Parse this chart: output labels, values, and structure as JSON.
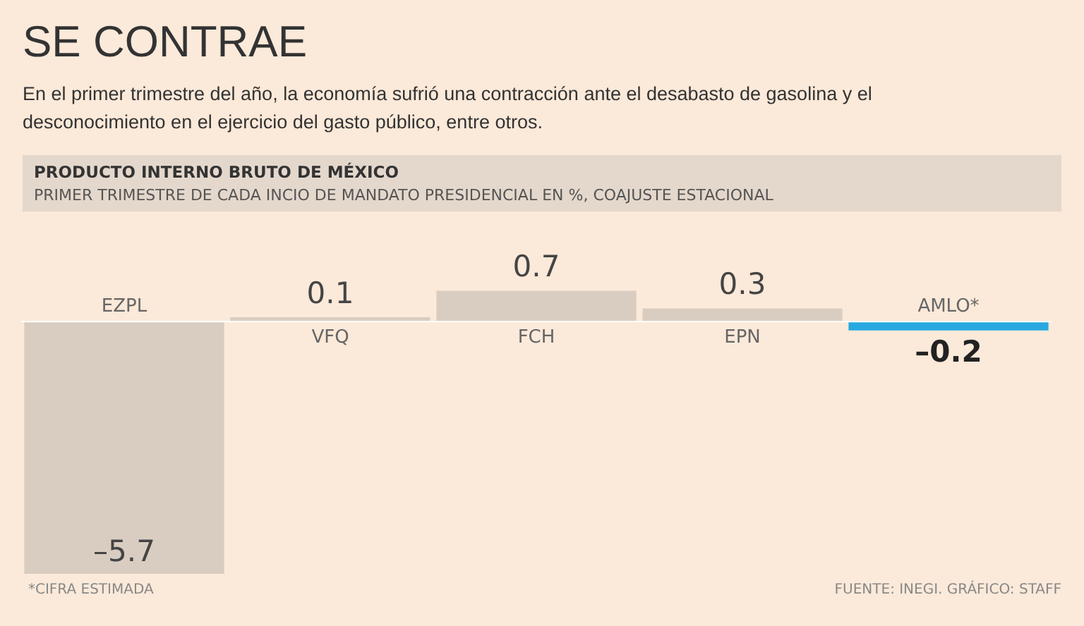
{
  "chart_data": {
    "type": "bar",
    "title": "SE CONTRAE",
    "subtitle": "En el primer trimestre del año, la economía sufrió una contracción ante el desabasto de gasolina y el desconocimiento en el ejercicio del gasto público, entre otros.",
    "annotations": [
      "PRODUCTO INTERNO BRUTO DE MÉXICO",
      "PRIMER TRIMESTRE DE CADA INCIO DE MANDATO PRESIDENCIAL EN %, COAJUSTE ESTACIONAL",
      "*CIFRA ESTIMADA",
      "FUENTE: INEGI. GRÁFICO: STAFF"
    ],
    "categories": [
      "EZPL",
      "VFQ",
      "FCH",
      "EPN",
      "AMLO*"
    ],
    "values": [
      -5.7,
      0.1,
      0.7,
      0.3,
      -0.2
    ],
    "colors": [
      "#d9cdc1",
      "#d9cdc1",
      "#d9cdc1",
      "#d9cdc1",
      "#29a8e0"
    ],
    "value_labels": [
      "–5.7",
      "0.1",
      "0.7",
      "0.3",
      "–0.2"
    ],
    "legend": false
  }
}
